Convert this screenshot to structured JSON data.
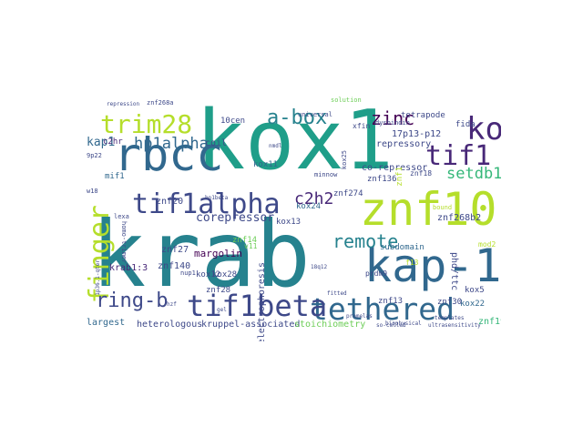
{
  "colors": {
    "background": "#ffffff",
    "palette": [
      "#440154",
      "#482878",
      "#3e4989",
      "#31688e",
      "#26828e",
      "#1f9e89",
      "#35b779",
      "#6ece58",
      "#b5de2b",
      "#fde725"
    ]
  },
  "words": [
    {
      "text": "krab",
      "color": "#26828e"
    },
    {
      "text": "kox1",
      "color": "#1f9e89"
    },
    {
      "text": "znf10",
      "color": "#b5de2b"
    },
    {
      "text": "kap-1",
      "color": "#31688e"
    },
    {
      "text": "rbcc",
      "color": "#31688e"
    },
    {
      "text": "tif1alpha",
      "color": "#3e4989"
    },
    {
      "text": "tethered",
      "color": "#31688e"
    },
    {
      "text": "tif1beta",
      "color": "#3e4989"
    },
    {
      "text": "trim28",
      "color": "#b5de2b"
    },
    {
      "text": "finger",
      "color": "#b5de2b"
    },
    {
      "text": "kox",
      "color": "#482878"
    },
    {
      "text": "tif1",
      "color": "#482878"
    },
    {
      "text": "remote",
      "color": "#26828e"
    },
    {
      "text": "a-box",
      "color": "#26828e"
    },
    {
      "text": "zinc",
      "color": "#440154"
    },
    {
      "text": "ring-b",
      "color": "#3e4989"
    },
    {
      "text": "hp1alpha",
      "color": "#31688e"
    },
    {
      "text": "setdb1",
      "color": "#35b779"
    },
    {
      "text": "c2h2",
      "color": "#482878"
    },
    {
      "text": "corepressor",
      "color": "#3e4989"
    },
    {
      "text": "znf274",
      "color": "#3e4989"
    },
    {
      "text": "kap1",
      "color": "#31688e"
    },
    {
      "text": "c2hr",
      "color": "#482878"
    },
    {
      "text": "coil",
      "color": "#3e4989"
    },
    {
      "text": "mif1",
      "color": "#31688e"
    },
    {
      "text": "znf20",
      "color": "#3e4989"
    },
    {
      "text": "znf27",
      "color": "#3e4989"
    },
    {
      "text": "znf140",
      "color": "#3e4989"
    },
    {
      "text": "krab1:3",
      "color": "#482878"
    },
    {
      "text": "largest",
      "color": "#31688e"
    },
    {
      "text": "heterologous",
      "color": "#3e4989"
    },
    {
      "text": "kruppel-associated",
      "color": "#3e4989"
    },
    {
      "text": "stoichiometry",
      "color": "#6ece58"
    },
    {
      "text": "margolin",
      "color": "#440154"
    },
    {
      "text": "kox28",
      "color": "#3e4989"
    },
    {
      "text": "kox12",
      "color": "#3e4989"
    },
    {
      "text": "znf28",
      "color": "#3e4989"
    },
    {
      "text": "kox13",
      "color": "#3e4989"
    },
    {
      "text": "kox24",
      "color": "#31688e"
    },
    {
      "text": "kox11",
      "color": "#31688e"
    },
    {
      "text": "electrophoresis",
      "color": "#3e4989"
    },
    {
      "text": "co-repressor",
      "color": "#3e4989"
    },
    {
      "text": "repressory",
      "color": "#3e4989"
    },
    {
      "text": "17p13-p12",
      "color": "#3e4989"
    },
    {
      "text": "tetrapode",
      "color": "#3e4989"
    },
    {
      "text": "fida",
      "color": "#3e4989"
    },
    {
      "text": "dysbindin",
      "color": "#3e4989"
    },
    {
      "text": "universal",
      "color": "#3e4989"
    },
    {
      "text": "solution",
      "color": "#6ece58"
    },
    {
      "text": "10cen",
      "color": "#3e4989"
    },
    {
      "text": "xfin",
      "color": "#3e4989"
    },
    {
      "text": "minnow",
      "color": "#3e4989"
    },
    {
      "text": "znf268b2",
      "color": "#3e4989"
    },
    {
      "text": "subdomain",
      "color": "#31688e"
    },
    {
      "text": "mod2",
      "color": "#b5de2b"
    },
    {
      "text": "phd/ttc",
      "color": "#3e4989"
    },
    {
      "text": "kox5",
      "color": "#3e4989"
    },
    {
      "text": "kox22",
      "color": "#31688e"
    },
    {
      "text": "znf30",
      "color": "#3e4989"
    },
    {
      "text": "znf19",
      "color": "#35b779"
    },
    {
      "text": "znf13",
      "color": "#3e4989"
    },
    {
      "text": "znf136",
      "color": "#3e4989"
    },
    {
      "text": "fitted",
      "color": "#3e4989"
    },
    {
      "text": "biophysical",
      "color": "#3e4989"
    },
    {
      "text": "promelas",
      "color": "#3e4989"
    },
    {
      "text": "znf14",
      "color": "#6ece58"
    },
    {
      "text": "znf268a",
      "color": "#3e4989"
    },
    {
      "text": "repression",
      "color": "#3e4989"
    },
    {
      "text": "homo-trimer",
      "color": "#3e4989"
    },
    {
      "text": "lexa",
      "color": "#3e4989"
    },
    {
      "text": "9p22",
      "color": "#3e4989"
    },
    {
      "text": "w18",
      "color": "#3e4989"
    },
    {
      "text": "znf18",
      "color": "#3e4989"
    },
    {
      "text": "1p36.1-qter",
      "color": "#3e4989"
    },
    {
      "text": "nmdl",
      "color": "#3e4989"
    },
    {
      "text": "hp1beta",
      "color": "#3e4989"
    },
    {
      "text": "v11",
      "color": "#6ece58"
    },
    {
      "text": "gel",
      "color": "#3e4989"
    },
    {
      "text": "hzf",
      "color": "#3e4989"
    },
    {
      "text": "18q12",
      "color": "#3e4989"
    },
    {
      "text": "f13",
      "color": "#b5de2b"
    },
    {
      "text": "prdm9",
      "color": "#3e4989"
    },
    {
      "text": "so-called",
      "color": "#3e4989"
    },
    {
      "text": "ultrasensitivity",
      "color": "#3e4989"
    },
    {
      "text": "znf1",
      "color": "#b5de2b"
    },
    {
      "text": "kox25",
      "color": "#3e4989"
    },
    {
      "text": "nup1",
      "color": "#3e4989"
    },
    {
      "text": "bound",
      "color": "#b5de2b"
    },
    {
      "text": "templates",
      "color": "#3e4989"
    }
  ]
}
